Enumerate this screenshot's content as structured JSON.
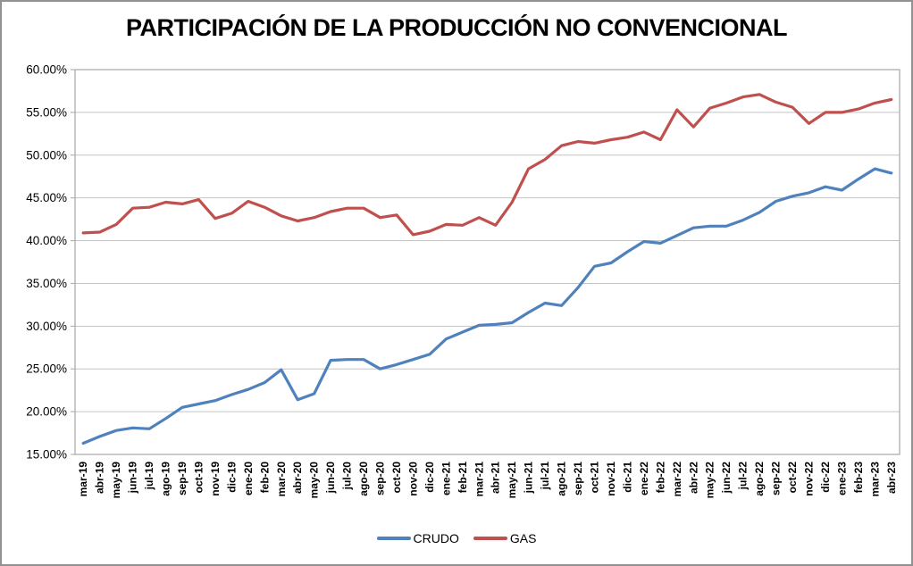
{
  "window": {
    "background": "#ffffff",
    "border_color": "#919191"
  },
  "chart_data": {
    "type": "line",
    "title": "PARTICIPACIÓN DE LA PRODUCCIÓN NO CONVENCIONAL",
    "categories": [
      "mar-19",
      "abr-19",
      "may-19",
      "jun-19",
      "jul-19",
      "ago-19",
      "sep-19",
      "oct-19",
      "nov-19",
      "dic-19",
      "ene-20",
      "feb-20",
      "mar-20",
      "abr-20",
      "may-20",
      "jun-20",
      "jul-20",
      "ago-20",
      "sep-20",
      "oct-20",
      "nov-20",
      "dic-20",
      "ene-21",
      "feb-21",
      "mar-21",
      "abr-21",
      "may-21",
      "jun-21",
      "jul-21",
      "ago-21",
      "sep-21",
      "oct-21",
      "nov-21",
      "dic-21",
      "ene-22",
      "feb-22",
      "mar-22",
      "abr-22",
      "may-22",
      "jun-22",
      "jul-22",
      "ago-22",
      "sep-22",
      "oct-22",
      "nov-22",
      "dic-22",
      "ene-23",
      "feb-23",
      "mar-23",
      "abr-23"
    ],
    "series": [
      {
        "name": "CRUDO",
        "color": "#4F81BD",
        "values": [
          16.3,
          17.1,
          17.8,
          18.1,
          18.0,
          19.2,
          20.5,
          20.9,
          21.3,
          22.0,
          22.6,
          23.4,
          24.9,
          21.4,
          22.1,
          26.0,
          26.1,
          26.1,
          25.0,
          25.5,
          26.1,
          26.7,
          28.5,
          29.3,
          30.1,
          30.2,
          30.4,
          31.6,
          32.7,
          32.4,
          34.5,
          37.0,
          37.4,
          38.7,
          39.9,
          39.7,
          40.6,
          41.5,
          41.7,
          41.7,
          42.4,
          43.3,
          44.6,
          45.2,
          45.6,
          46.3,
          45.9,
          47.2,
          48.4,
          47.9
        ]
      },
      {
        "name": "GAS",
        "color": "#C0504D",
        "values": [
          40.9,
          41.0,
          41.9,
          43.8,
          43.9,
          44.5,
          44.3,
          44.8,
          42.6,
          43.2,
          44.6,
          43.9,
          42.9,
          42.3,
          42.7,
          43.4,
          43.8,
          43.8,
          42.7,
          43.0,
          40.7,
          41.1,
          41.9,
          41.8,
          42.7,
          41.8,
          44.5,
          48.4,
          49.5,
          51.1,
          51.6,
          51.4,
          51.8,
          52.1,
          52.7,
          51.8,
          55.3,
          53.3,
          55.5,
          56.1,
          56.8,
          57.1,
          56.2,
          55.6,
          53.7,
          55.0,
          55.0,
          55.4,
          56.1,
          56.5
        ]
      }
    ],
    "ylim": [
      15,
      60
    ],
    "y_tick_step": 5,
    "y_tick_labels": [
      "15.00%",
      "20.00%",
      "25.00%",
      "30.00%",
      "35.00%",
      "40.00%",
      "45.00%",
      "50.00%",
      "55.00%",
      "60.00%"
    ],
    "grid": true,
    "gridline_color": "#C4C4C4",
    "axis_color": "#A6A6A6",
    "tick_label_color": "#000000",
    "legend_position": "bottom"
  }
}
